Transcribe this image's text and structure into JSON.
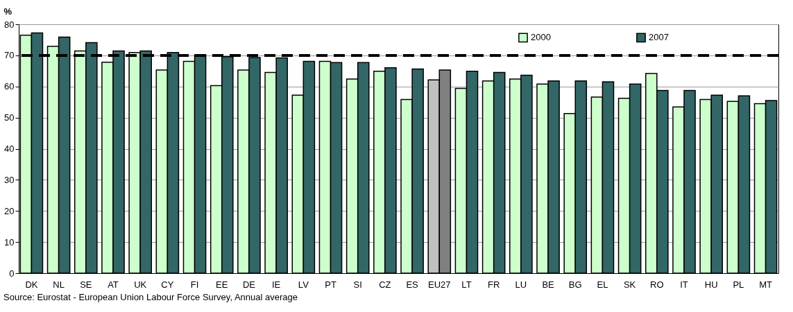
{
  "chart_data": {
    "type": "bar",
    "ylabel": "%",
    "categories": [
      "DK",
      "NL",
      "SE",
      "AT",
      "UK",
      "CY",
      "FI",
      "EE",
      "DE",
      "IE",
      "LV",
      "PT",
      "SI",
      "CZ",
      "ES",
      "EU27",
      "LT",
      "FR",
      "LU",
      "BE",
      "BG",
      "EL",
      "SK",
      "RO",
      "IT",
      "HU",
      "PL",
      "MT"
    ],
    "series": [
      {
        "name": "2000",
        "color": "#ccffcc",
        "colors": [
          "#ccffcc",
          "#ccffcc",
          "#ccffcc",
          "#ccffcc",
          "#ccffcc",
          "#ccffcc",
          "#ccffcc",
          "#ccffcc",
          "#ccffcc",
          "#ccffcc",
          "#ccffcc",
          "#ccffcc",
          "#ccffcc",
          "#ccffcc",
          "#ccffcc",
          "#c0c0c0",
          "#ccffcc",
          "#ccffcc",
          "#ccffcc",
          "#ccffcc",
          "#ccffcc",
          "#ccffcc",
          "#ccffcc",
          "#ccffcc",
          "#ccffcc",
          "#ccffcc",
          "#ccffcc",
          "#ccffcc"
        ],
        "values": [
          76.5,
          72.9,
          71.4,
          67.8,
          70.9,
          65.3,
          68.1,
          60.3,
          65.3,
          64.5,
          57.2,
          68.1,
          62.4,
          64.9,
          55.8,
          62.1,
          59.4,
          61.8,
          62.4,
          60.8,
          51.3,
          56.6,
          56.2,
          64.2,
          53.4,
          55.8,
          55.2,
          54.5
        ]
      },
      {
        "name": "2007",
        "color": "#336666",
        "colors": [
          "#336666",
          "#336666",
          "#336666",
          "#336666",
          "#336666",
          "#336666",
          "#336666",
          "#336666",
          "#336666",
          "#336666",
          "#336666",
          "#336666",
          "#336666",
          "#336666",
          "#336666",
          "#808080",
          "#336666",
          "#336666",
          "#336666",
          "#336666",
          "#336666",
          "#336666",
          "#336666",
          "#336666",
          "#336666",
          "#336666",
          "#336666",
          "#336666"
        ],
        "values": [
          77.2,
          75.9,
          74.1,
          71.4,
          71.4,
          70.9,
          70.2,
          69.6,
          69.3,
          69.2,
          68.1,
          67.7,
          67.7,
          66.0,
          65.6,
          65.3,
          64.9,
          64.5,
          63.6,
          61.8,
          61.8,
          61.5,
          60.8,
          58.7,
          58.7,
          57.2,
          57.0,
          55.5
        ]
      }
    ],
    "ylim": [
      0,
      80
    ],
    "yticks": [
      0,
      10,
      20,
      30,
      40,
      50,
      60,
      70,
      80
    ],
    "grid": "y",
    "legend": "top right",
    "ref_lines": [
      {
        "axis": "y",
        "value": 70,
        "color": "#000000",
        "line_style": "dashed"
      }
    ],
    "annotations": [
      "Source: Eurostat - European Union Labour Force Survey, Annual average"
    ]
  }
}
